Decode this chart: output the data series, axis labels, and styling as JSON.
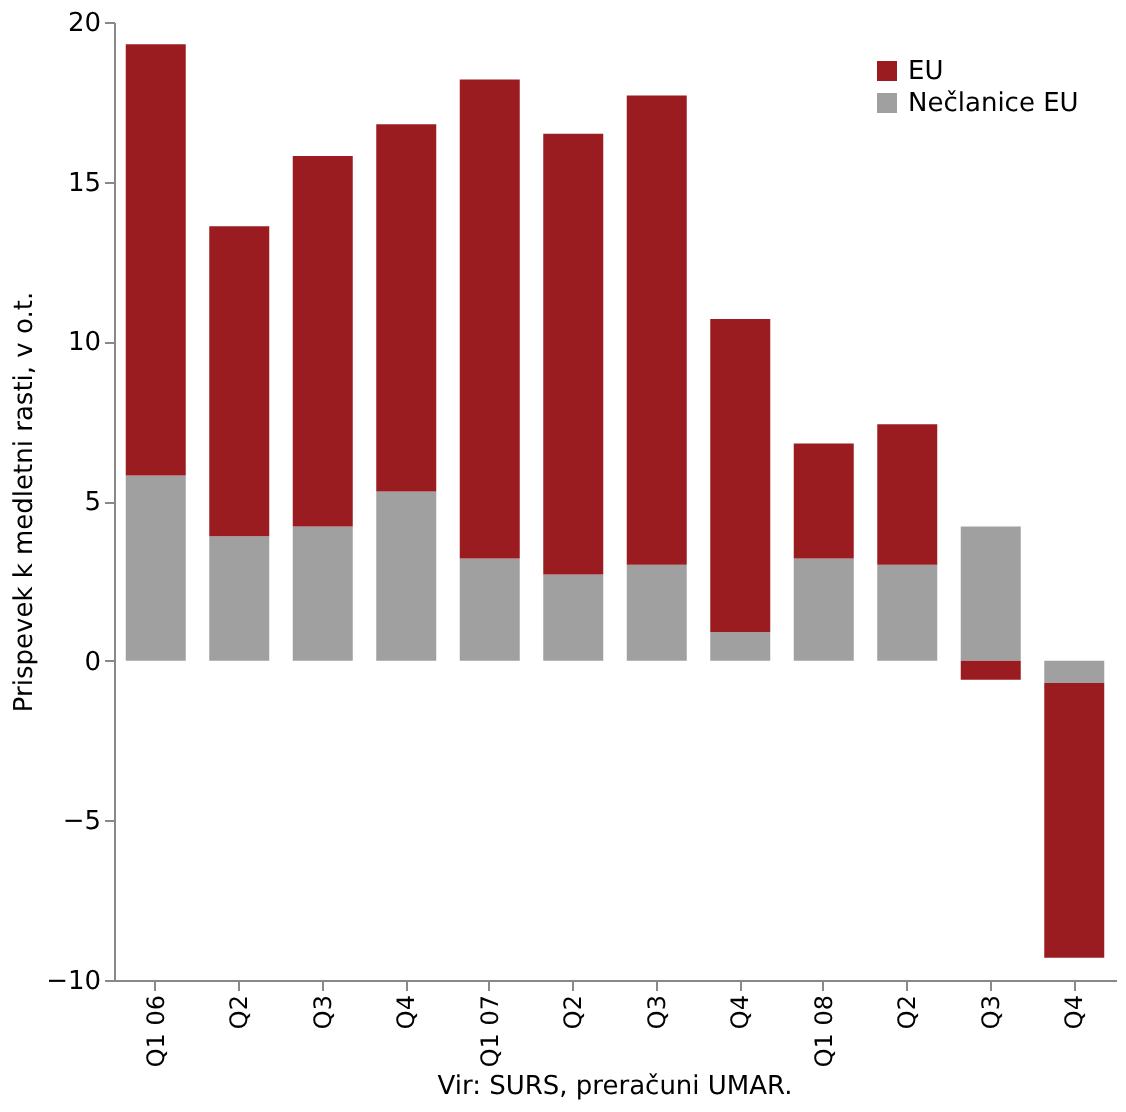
{
  "chart_data": {
    "type": "bar",
    "stacked": true,
    "ylabel": "Prispevek k medletni rasti, v o.t.",
    "categories": [
      "Q1 06",
      "Q2",
      "Q3",
      "Q4",
      "Q1 07",
      "Q2",
      "Q3",
      "Q4",
      "Q1 08",
      "Q2",
      "Q3",
      "Q4"
    ],
    "series": [
      {
        "name": "Nečlanice EU",
        "color": "#a0a0a0",
        "values": [
          5.8,
          3.9,
          4.2,
          5.3,
          3.2,
          2.7,
          3.0,
          0.9,
          3.2,
          3.0,
          4.2,
          -0.7
        ]
      },
      {
        "name": "EU",
        "color": "#9b1c20",
        "values": [
          13.5,
          9.7,
          11.6,
          11.5,
          15.0,
          13.8,
          14.7,
          9.8,
          3.6,
          4.4,
          -0.6,
          -8.6
        ]
      }
    ],
    "ylim": [
      -10,
      20
    ],
    "yticks": [
      -10,
      -5,
      0,
      5,
      10,
      15,
      20
    ],
    "grid": false,
    "legend": "top right",
    "annotations": [
      "Vir: SURS, preračuni UMAR."
    ]
  }
}
